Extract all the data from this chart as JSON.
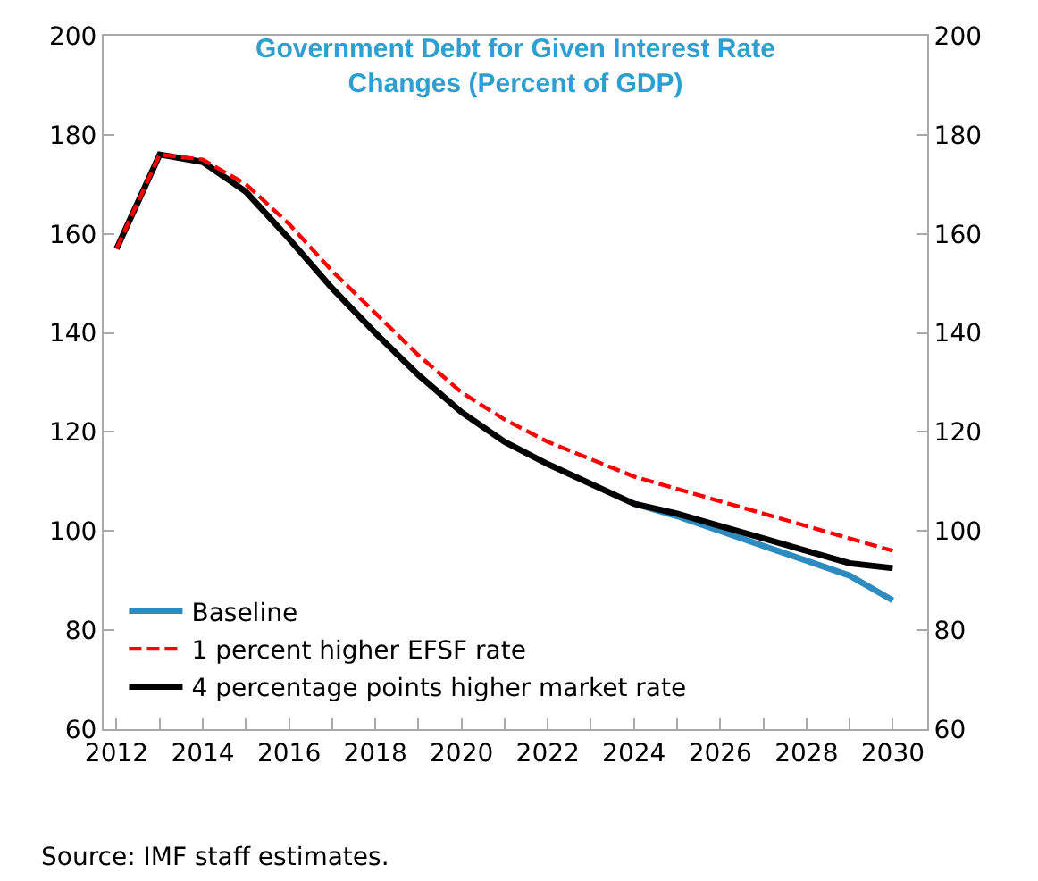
{
  "chart_data": {
    "type": "line",
    "title": "Government Debt for Given Interest Rate Changes (Percent of GDP)",
    "x": [
      2012,
      2013,
      2014,
      2015,
      2016,
      2017,
      2018,
      2019,
      2020,
      2021,
      2022,
      2023,
      2024,
      2025,
      2026,
      2027,
      2028,
      2029,
      2030
    ],
    "series": [
      {
        "name": "Baseline",
        "color": "#2e8bc0",
        "line_style": "solid",
        "values": [
          null,
          null,
          null,
          null,
          null,
          null,
          null,
          null,
          null,
          null,
          null,
          null,
          105.5,
          103,
          100,
          97,
          94,
          91,
          86
        ]
      },
      {
        "name": "1 percent higher EFSF rate",
        "color": "#ff0000",
        "line_style": "dashed",
        "values": [
          157,
          176,
          175,
          170,
          162,
          152.5,
          144,
          135.5,
          128,
          122.5,
          118,
          114.5,
          111,
          108.5,
          106,
          103.5,
          101,
          98.5,
          96
        ]
      },
      {
        "name": "4 percentage points higher market rate",
        "color": "#000000",
        "line_style": "solid",
        "values": [
          157,
          176,
          174.5,
          168.5,
          159,
          149,
          140,
          131.5,
          124,
          118,
          113.5,
          109.5,
          105.5,
          103.5,
          101,
          98.5,
          96,
          93.5,
          92.5
        ]
      }
    ],
    "xlim": [
      2011.7,
      2030.8
    ],
    "xticks": [
      2012,
      {
        "value": 2013,
        "label": null
      },
      2014,
      {
        "value": 2015,
        "label": null
      },
      2016,
      {
        "value": 2017,
        "label": null
      },
      2018,
      {
        "value": 2019,
        "label": null
      },
      2020,
      {
        "value": 2021,
        "label": null
      },
      2022,
      {
        "value": 2023,
        "label": null
      },
      2024,
      {
        "value": 2025,
        "label": null
      },
      2026,
      {
        "value": 2027,
        "label": null
      },
      2028,
      {
        "value": 2029,
        "label": null
      },
      2030
    ],
    "ylim": [
      60,
      200
    ],
    "yticks": [
      60,
      80,
      100,
      120,
      140,
      160,
      180,
      200
    ],
    "y2lim": [
      60,
      200
    ],
    "y2ticks": [
      60,
      80,
      100,
      120,
      140,
      160,
      180,
      200
    ],
    "grid": false,
    "legend": "bottom left",
    "marker": "none",
    "annotations": [
      "Source: IMF staff estimates."
    ]
  }
}
